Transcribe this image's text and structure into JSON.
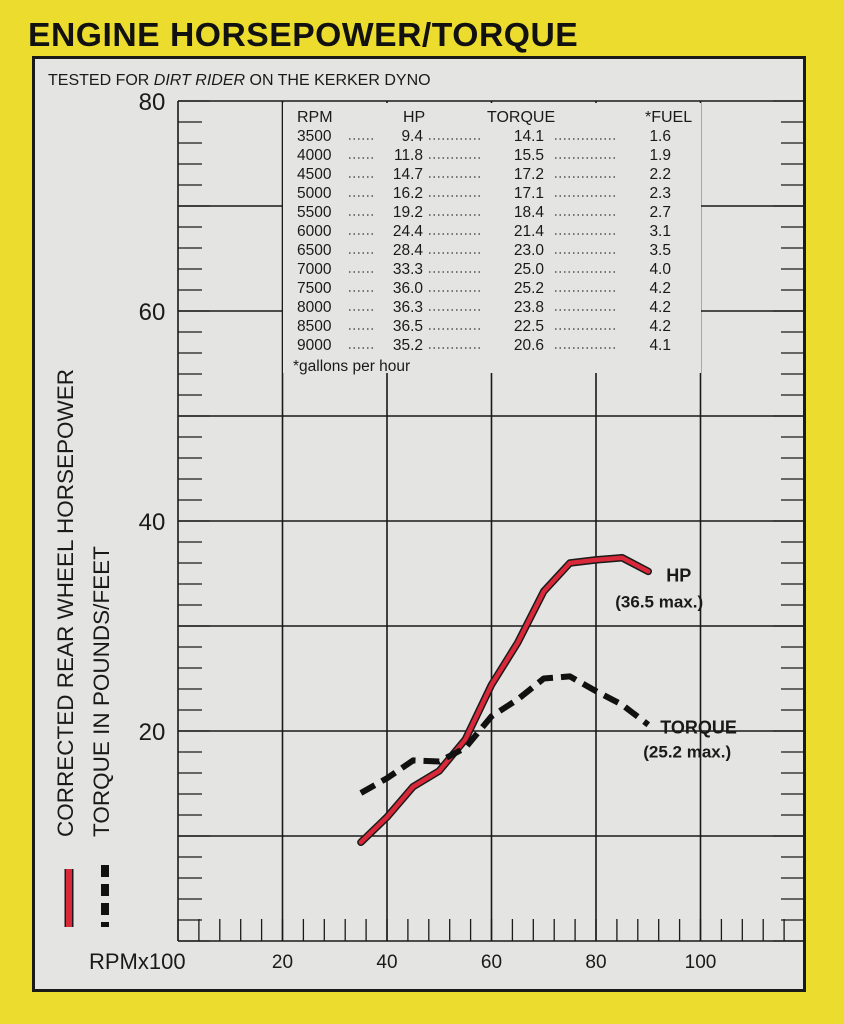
{
  "page": {
    "title": "ENGINE HORSEPOWER/TORQUE",
    "subtitle_prefix": "TESTED FOR ",
    "subtitle_italic": "DIRT RIDER",
    "subtitle_suffix": " ON THE KERKER DYNO",
    "colors": {
      "background": "#ecdc2e",
      "panel": "#e4e4e2",
      "hp_line": "#d8283a",
      "torque_line": "#111111"
    }
  },
  "chart_data": {
    "type": "line",
    "xlabel": "RPMx100",
    "ylabel_lines": [
      "CORRECTED REAR WHEEL HORSEPOWER",
      "TORQUE IN POUNDS/FEET"
    ],
    "xlim": [
      0,
      120
    ],
    "ylim": [
      0,
      80
    ],
    "x_ticks": [
      "20",
      "40",
      "60",
      "80",
      "100"
    ],
    "y_ticks": [
      "20",
      "40",
      "60",
      "80"
    ],
    "grid": true,
    "series": [
      {
        "name": "HP",
        "annotation": "(36.5 max.)",
        "style": "solid",
        "color": "#d8283a",
        "x": [
          35,
          40,
          45,
          50,
          55,
          60,
          65,
          70,
          75,
          80,
          85,
          90
        ],
        "y": [
          9.4,
          11.8,
          14.7,
          16.2,
          19.2,
          24.4,
          28.4,
          33.3,
          36.0,
          36.3,
          36.5,
          35.2
        ]
      },
      {
        "name": "TORQUE",
        "annotation": "(25.2 max.)",
        "style": "dashed",
        "color": "#111111",
        "x": [
          35,
          40,
          45,
          50,
          55,
          60,
          65,
          70,
          75,
          80,
          85,
          90
        ],
        "y": [
          14.1,
          15.5,
          17.2,
          17.1,
          18.4,
          21.4,
          23.0,
          25.0,
          25.2,
          23.8,
          22.5,
          20.6
        ]
      }
    ],
    "table": {
      "headers": [
        "RPM",
        "HP",
        "TORQUE",
        "*FUEL"
      ],
      "rows": [
        [
          "3500",
          "9.4",
          "14.1",
          "1.6"
        ],
        [
          "4000",
          "11.8",
          "15.5",
          "1.9"
        ],
        [
          "4500",
          "14.7",
          "17.2",
          "2.2"
        ],
        [
          "5000",
          "16.2",
          "17.1",
          "2.3"
        ],
        [
          "5500",
          "19.2",
          "18.4",
          "2.7"
        ],
        [
          "6000",
          "24.4",
          "21.4",
          "3.1"
        ],
        [
          "6500",
          "28.4",
          "23.0",
          "3.5"
        ],
        [
          "7000",
          "33.3",
          "25.0",
          "4.0"
        ],
        [
          "7500",
          "36.0",
          "25.2",
          "4.2"
        ],
        [
          "8000",
          "36.3",
          "23.8",
          "4.2"
        ],
        [
          "8500",
          "36.5",
          "22.5",
          "4.2"
        ],
        [
          "9000",
          "35.2",
          "20.6",
          "4.1"
        ]
      ],
      "footnote": "*gallons per hour"
    }
  }
}
